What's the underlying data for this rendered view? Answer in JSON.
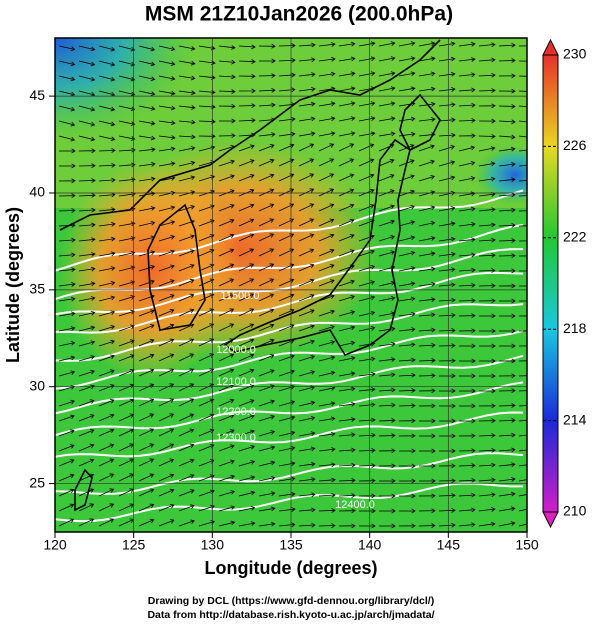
{
  "chart_data": {
    "type": "heatmap",
    "title": "MSM 21Z10Jan2026 (200.0hPa)",
    "x_label": "Longitude (degrees)",
    "y_label": "Latitude  (degrees)",
    "xlim": [
      120,
      150
    ],
    "xticks": [
      120,
      125,
      130,
      135,
      140,
      145,
      150
    ],
    "ylim": [
      22.5,
      48
    ],
    "yticks": [
      25,
      30,
      35,
      40,
      45
    ],
    "colorbar": {
      "lim": [
        210,
        230
      ],
      "ticks": [
        210,
        214,
        218,
        222,
        226,
        230
      ]
    },
    "contour_labels": [
      "11500.0",
      "12000.0",
      "12100.0",
      "12200.0",
      "12300.0",
      "12400.0"
    ],
    "credits": [
      "Drawing by DCL (https://www.gfd-dennou.org/library/dcl/)",
      "Data from http://database.rish.kyoto-u.ac.jp/arch/jmadata/"
    ]
  }
}
